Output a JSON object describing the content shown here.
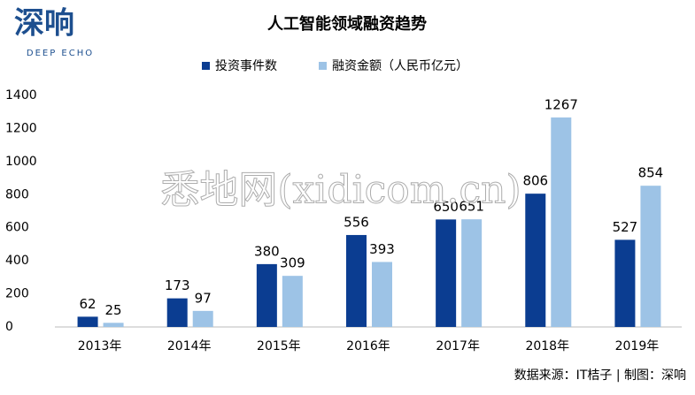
{
  "logo": {
    "name": "深响",
    "subtitle": "DEEP ECHO"
  },
  "watermark": "悉地网(xidicom.cn)",
  "source": "数据来源：IT桔子 | 制图：深响",
  "chart_data": {
    "type": "bar",
    "title": "人工智能领域融资趋势",
    "categories": [
      "2013年",
      "2014年",
      "2015年",
      "2016年",
      "2017年",
      "2018年",
      "2019年"
    ],
    "series": [
      {
        "name": "投资事件数",
        "color": "#0b3d91",
        "values": [
          62,
          173,
          380,
          556,
          650,
          806,
          527
        ]
      },
      {
        "name": "融资金额（人民币亿元）",
        "color": "#9dc3e6",
        "values": [
          25,
          97,
          309,
          393,
          651,
          1267,
          854
        ]
      }
    ],
    "ylim": [
      0,
      1400
    ],
    "yticks": [
      0,
      200,
      400,
      600,
      800,
      1000,
      1200,
      1400
    ],
    "grid": false,
    "legend": "top"
  }
}
